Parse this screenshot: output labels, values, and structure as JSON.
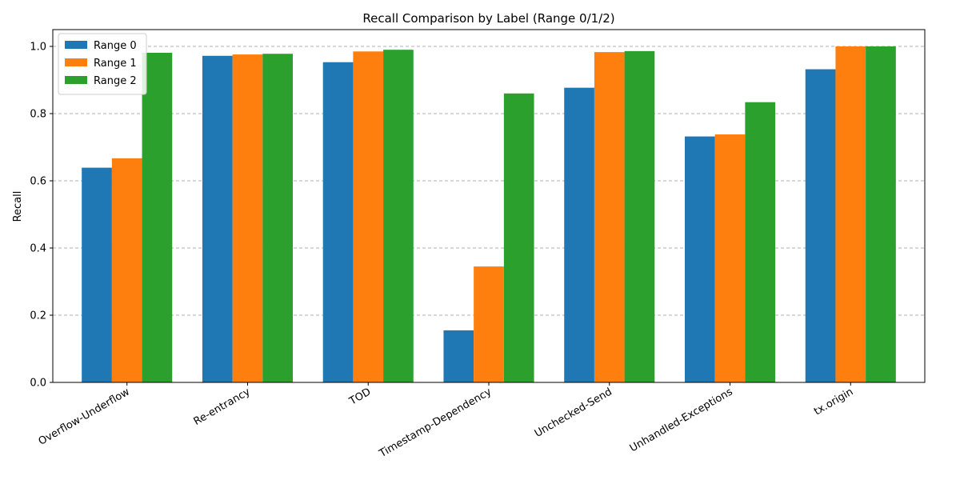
{
  "chart_data": {
    "type": "bar",
    "title": "Recall Comparison by Label (Range 0/1/2)",
    "xlabel": "",
    "ylabel": "Recall",
    "ylim": [
      0,
      1.05
    ],
    "yticks": [
      0.0,
      0.2,
      0.4,
      0.6,
      0.8,
      1.0
    ],
    "ytick_labels": [
      "0.0",
      "0.2",
      "0.4",
      "0.6",
      "0.8",
      "1.0"
    ],
    "grid": "y-dashed",
    "legend_position": "top-left",
    "categories": [
      "Overflow-Underflow",
      "Re-entrancy",
      "TOD",
      "Timestamp-Dependency",
      "Unchecked-Send",
      "Unhandled-Exceptions",
      "tx.origin"
    ],
    "series": [
      {
        "name": "Range 0",
        "color": "#1f77b4",
        "values": [
          0.639,
          0.972,
          0.953,
          0.155,
          0.877,
          0.732,
          0.932
        ]
      },
      {
        "name": "Range 1",
        "color": "#ff7f0e",
        "values": [
          0.667,
          0.976,
          0.985,
          0.345,
          0.983,
          0.738,
          1.0
        ]
      },
      {
        "name": "Range 2",
        "color": "#2ca02c",
        "values": [
          0.981,
          0.978,
          0.99,
          0.86,
          0.986,
          0.834,
          1.0
        ]
      }
    ]
  }
}
